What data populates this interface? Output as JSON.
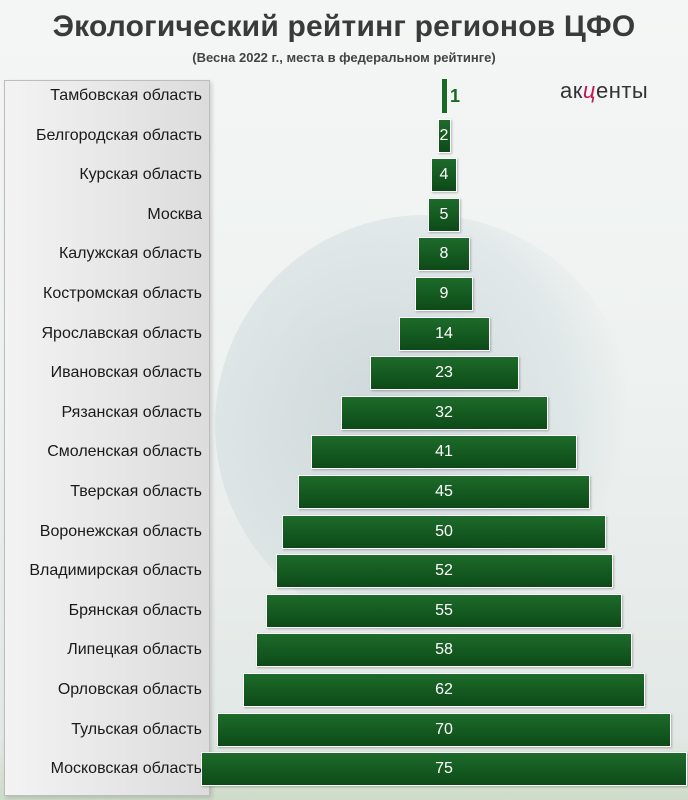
{
  "title": "Экологический рейтинг регионов ЦФО",
  "subtitle": "(Весна 2022 г., места в федеральном рейтинге)",
  "logo": {
    "prefix": "ак",
    "accent": "ц",
    "suffix": "енты"
  },
  "chart_data": {
    "type": "bar",
    "orientation": "horizontal",
    "categories": [
      "Тамбовская область",
      "Белгородская область",
      "Курская область",
      "Москва",
      "Калужская область",
      "Костромская область",
      "Ярославская область",
      "Ивановская область",
      "Рязанская область",
      "Смоленская область",
      "Тверская область",
      "Воронежская область",
      "Владимирская область",
      "Брянская область",
      "Липецкая область",
      "Орловская область",
      "Тульская область",
      "Московская область"
    ],
    "values": [
      1,
      2,
      4,
      5,
      8,
      9,
      14,
      23,
      32,
      41,
      45,
      50,
      52,
      55,
      58,
      62,
      70,
      75
    ],
    "data_labels": [
      "1",
      "2",
      "4",
      "5",
      "8",
      "9",
      "14",
      "23",
      "32",
      "41",
      "45",
      "50",
      "52",
      "55",
      "58",
      "62",
      "70",
      "75"
    ],
    "title": "Экологический рейтинг регионов ЦФО",
    "bar_color": "#166a24",
    "label_color": "#ffffff",
    "legend": "none",
    "grid": false
  }
}
